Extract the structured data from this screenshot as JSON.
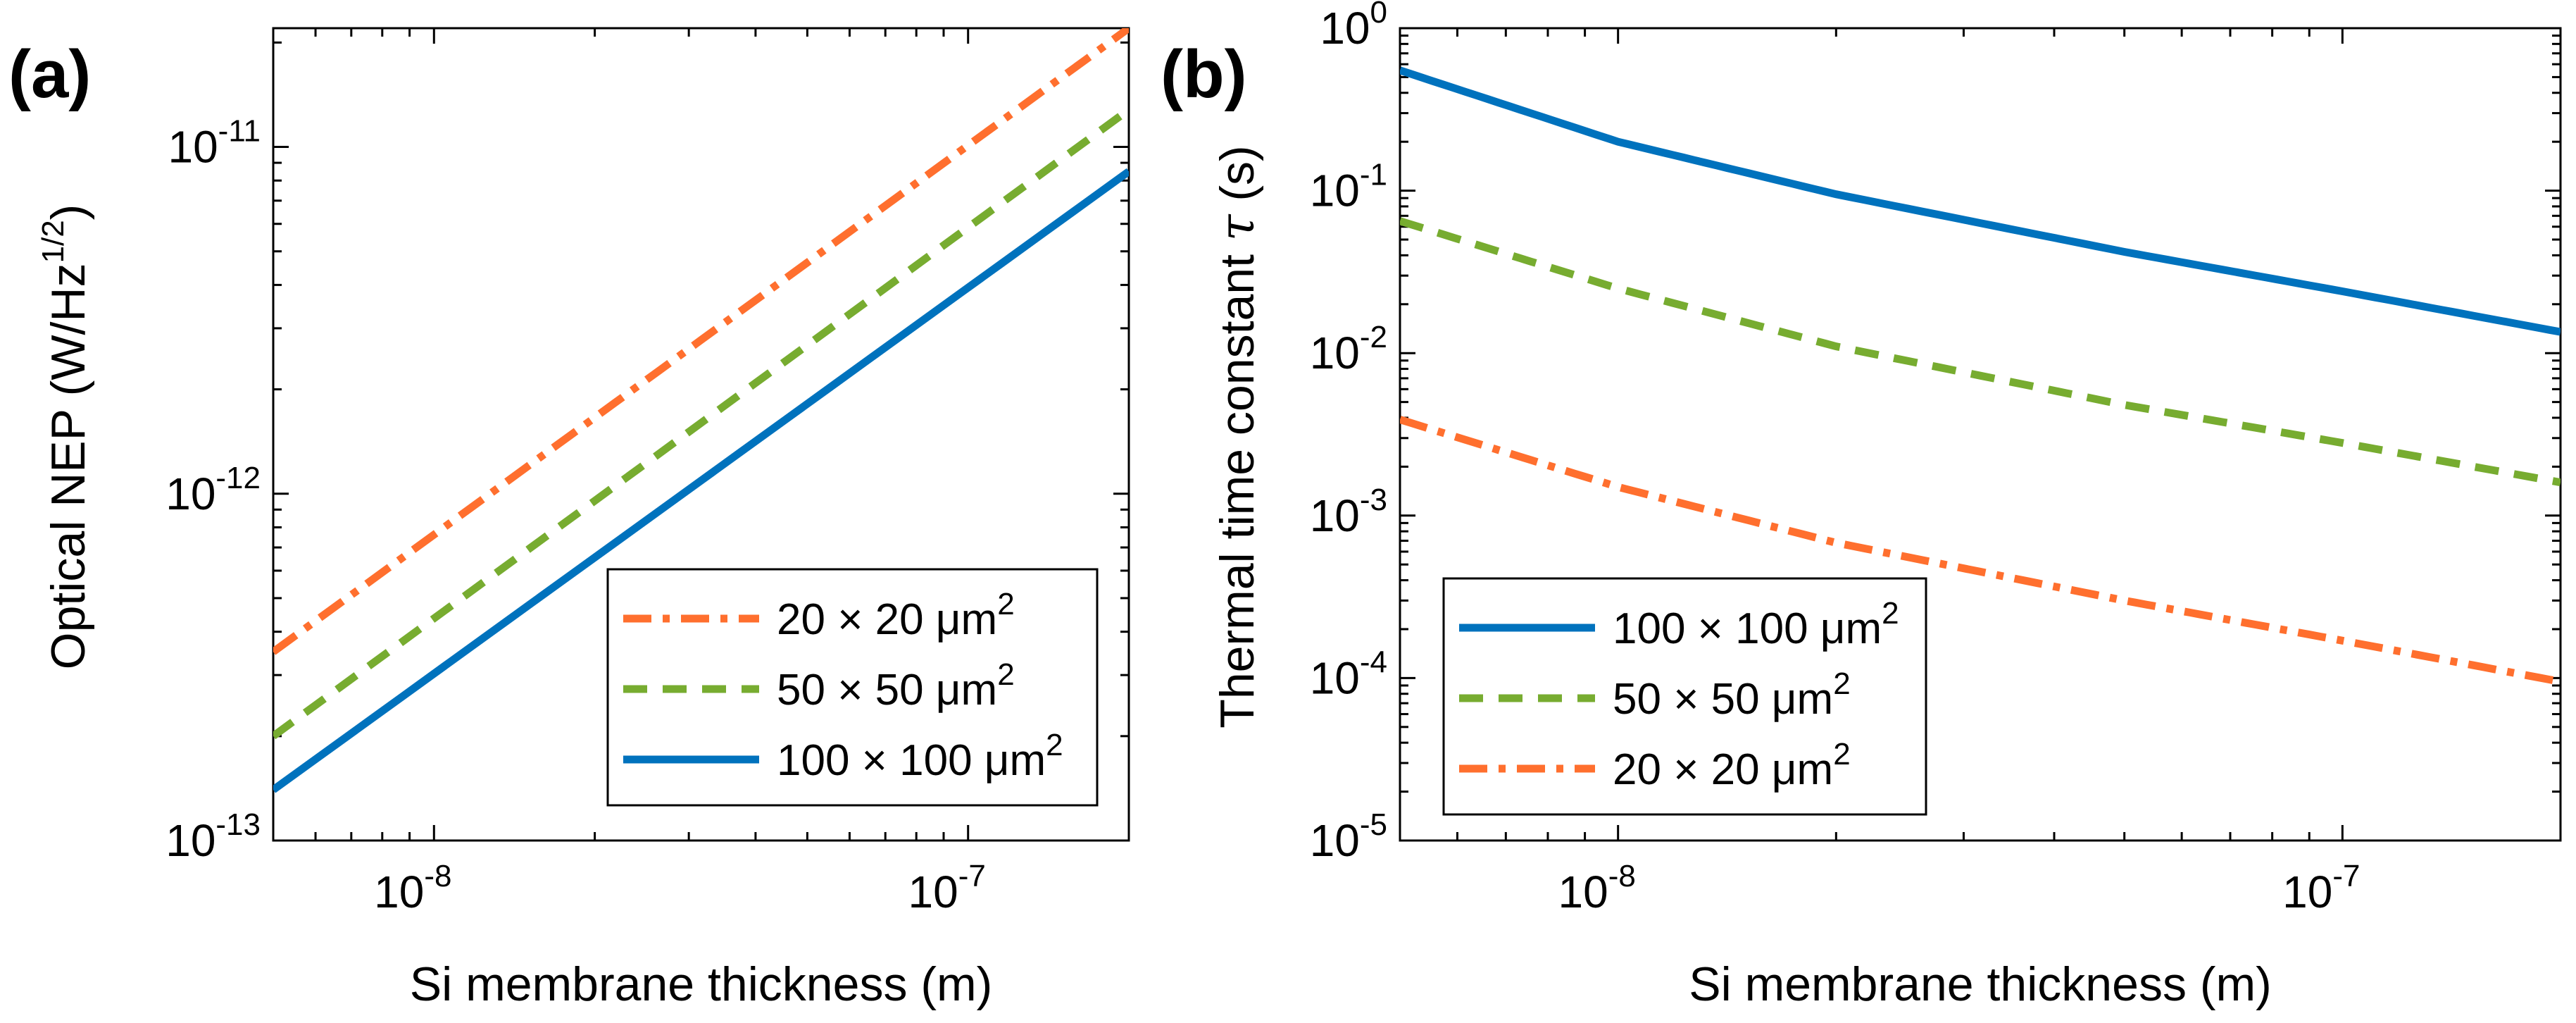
{
  "chart_data": [
    {
      "type": "line",
      "panel": "(a)",
      "xscale": "log",
      "yscale": "log",
      "xlim": [
        5e-09,
        2e-07
      ],
      "ylim": [
        1e-13,
        2.2e-11
      ],
      "xlabel": "Si membrane thickness (m)",
      "ylabel_main": "Optical NEP (W/Hz",
      "ylabel_sup": "1/2",
      "ylabel_end": ")",
      "xticks": [
        {
          "value": 1e-08,
          "base": "10",
          "exp": "-8"
        },
        {
          "value": 1e-07,
          "base": "10",
          "exp": "-7"
        }
      ],
      "yticks": [
        {
          "value": 1e-13,
          "base": "10",
          "exp": "-13"
        },
        {
          "value": 1e-12,
          "base": "10",
          "exp": "-12"
        },
        {
          "value": 1e-11,
          "base": "10",
          "exp": "-11"
        }
      ],
      "legend_position": "bottom-right",
      "series": [
        {
          "name": "20×20 μm²",
          "legend_main": "20 × 20 μm",
          "legend_sup": "2",
          "color": "#ff6f2e",
          "style": "dashdot",
          "x": [
            5e-09,
            2e-07
          ],
          "values": [
            3.5e-13,
            2.2e-11
          ]
        },
        {
          "name": "50×50 μm²",
          "legend_main": "50 × 50 μm",
          "legend_sup": "2",
          "color": "#77ac30",
          "style": "dashed",
          "x": [
            5e-09,
            2e-07
          ],
          "values": [
            2e-13,
            1.28e-11
          ]
        },
        {
          "name": "100×100 μm²",
          "legend_main": "100 × 100 μm",
          "legend_sup": "2",
          "color": "#0072bd",
          "style": "solid",
          "x": [
            5e-09,
            2e-07
          ],
          "values": [
            1.4e-13,
            8.5e-12
          ]
        }
      ]
    },
    {
      "type": "line",
      "panel": "(b)",
      "xscale": "log",
      "yscale": "log",
      "xlim": [
        5e-09,
        2e-07
      ],
      "ylim": [
        1e-05,
        1
      ],
      "xlabel": "Si membrane thickness (m)",
      "ylabel_main": "Thermal time constant ",
      "ylabel_sym": "τ",
      "ylabel_end": " (s)",
      "xticks": [
        {
          "value": 1e-08,
          "base": "10",
          "exp": "-8"
        },
        {
          "value": 1e-07,
          "base": "10",
          "exp": "-7"
        }
      ],
      "yticks": [
        {
          "value": 1e-05,
          "base": "10",
          "exp": "-5"
        },
        {
          "value": 0.0001,
          "base": "10",
          "exp": "-4"
        },
        {
          "value": 0.001,
          "base": "10",
          "exp": "-3"
        },
        {
          "value": 0.01,
          "base": "10",
          "exp": "-2"
        },
        {
          "value": 0.1,
          "base": "10",
          "exp": "-1"
        },
        {
          "value": 1,
          "base": "10",
          "exp": "0"
        }
      ],
      "legend_position": "bottom-left",
      "series": [
        {
          "name": "100×100 μm²",
          "legend_main": "100 × 100 μm",
          "legend_sup": "2",
          "color": "#0072bd",
          "style": "solid",
          "x": [
            5e-09,
            1e-08,
            2e-08,
            5e-08,
            1e-07,
            2e-07
          ],
          "values": [
            0.55,
            0.2,
            0.095,
            0.042,
            0.024,
            0.0135
          ]
        },
        {
          "name": "50×50 μm²",
          "legend_main": "50 × 50 μm",
          "legend_sup": "2",
          "color": "#77ac30",
          "style": "dashed",
          "x": [
            5e-09,
            1e-08,
            2e-08,
            5e-08,
            1e-07,
            2e-07
          ],
          "values": [
            0.065,
            0.025,
            0.011,
            0.0048,
            0.0028,
            0.0016
          ]
        },
        {
          "name": "20×20 μm²",
          "legend_main": "20 × 20 μm",
          "legend_sup": "2",
          "color": "#ff6f2e",
          "style": "dashdot",
          "x": [
            5e-09,
            1e-08,
            2e-08,
            5e-08,
            1e-07,
            2e-07
          ],
          "values": [
            0.0039,
            0.0015,
            0.00068,
            0.0003,
            0.00017,
            9.5e-05
          ]
        }
      ]
    }
  ]
}
